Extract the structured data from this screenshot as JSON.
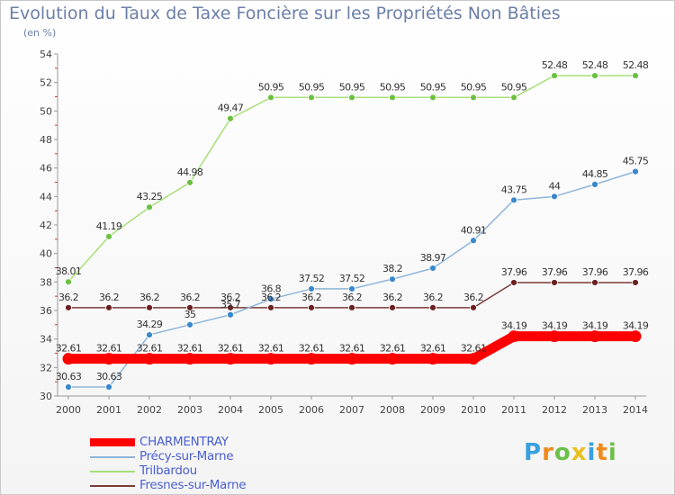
{
  "title": "Evolution du Taux de Taxe Foncière sur les Propriétés Non Bâties",
  "unit_label": "(en %)",
  "logo": {
    "text": "Proxiti",
    "letters": [
      "P",
      "r",
      "o",
      "x",
      "i",
      "t",
      "i"
    ],
    "colors": [
      "#3aa0e0",
      "#f08a1c",
      "#6cc04a",
      "#e8c020",
      "#3aa0e0",
      "#f08a1c",
      "#6cc04a"
    ]
  },
  "chart_data": {
    "type": "line",
    "x": [
      "2000",
      "2001",
      "2002",
      "2003",
      "2004",
      "2005",
      "2006",
      "2007",
      "2008",
      "2009",
      "2010",
      "2011",
      "2012",
      "2013",
      "2014"
    ],
    "ylim": [
      30,
      54
    ],
    "yticks": [
      30,
      32,
      34,
      36,
      38,
      40,
      42,
      44,
      46,
      48,
      50,
      52,
      54
    ],
    "grid": false,
    "legend_position": "bottom-left",
    "series": [
      {
        "name": "CHARMENTRAY",
        "color": "#ff0000",
        "marker_color": "#ff0000",
        "values": [
          32.61,
          32.61,
          32.61,
          32.61,
          32.61,
          32.61,
          32.61,
          32.61,
          32.61,
          32.61,
          32.61,
          34.19,
          34.19,
          34.19,
          34.19
        ],
        "labels": [
          "32.61",
          "32.61",
          "32.61",
          "32.61",
          "32.61",
          "32.61",
          "32.61",
          "32.61",
          "32.61",
          "32.61",
          "32.61",
          "34.19",
          "34.19",
          "34.19",
          "34.19"
        ]
      },
      {
        "name": "Précy-sur-Marne",
        "color": "#8fb5d8",
        "marker_color": "#3a88cc",
        "values": [
          30.63,
          30.63,
          34.29,
          35,
          35.7,
          36.8,
          37.52,
          37.52,
          38.2,
          38.97,
          40.91,
          43.75,
          44,
          44.85,
          45.75
        ],
        "labels": [
          "30.63",
          "30.63",
          "34.29",
          "35",
          "35.7",
          "36.8",
          "37.52",
          "37.52",
          "38.2",
          "38.97",
          "40.91",
          "43.75",
          "44",
          "44.85",
          "45.75"
        ]
      },
      {
        "name": "Trilbardou",
        "color": "#a8e07a",
        "marker_color": "#6cc040",
        "values": [
          38.01,
          41.19,
          43.25,
          44.98,
          49.47,
          50.95,
          50.95,
          50.95,
          50.95,
          50.95,
          50.95,
          50.95,
          52.48,
          52.48,
          52.48
        ],
        "labels": [
          "38.01",
          "41.19",
          "43.25",
          "44.98",
          "49.47",
          "50.95",
          "50.95",
          "50.95",
          "50.95",
          "50.95",
          "50.95",
          "50.95",
          "52.48",
          "52.48",
          "52.48"
        ]
      },
      {
        "name": "Fresnes-sur-Marne",
        "color": "#7a3a3a",
        "marker_color": "#6a2020",
        "values": [
          36.2,
          36.2,
          36.2,
          36.2,
          36.2,
          36.2,
          36.2,
          36.2,
          36.2,
          36.2,
          36.2,
          37.96,
          37.96,
          37.96,
          37.96
        ],
        "labels": [
          "36.2",
          "36.2",
          "36.2",
          "36.2",
          "36.2",
          "36.2",
          "36.2",
          "36.2",
          "36.2",
          "36.2",
          "36.2",
          "37.96",
          "37.96",
          "37.96",
          "37.96"
        ]
      }
    ]
  }
}
